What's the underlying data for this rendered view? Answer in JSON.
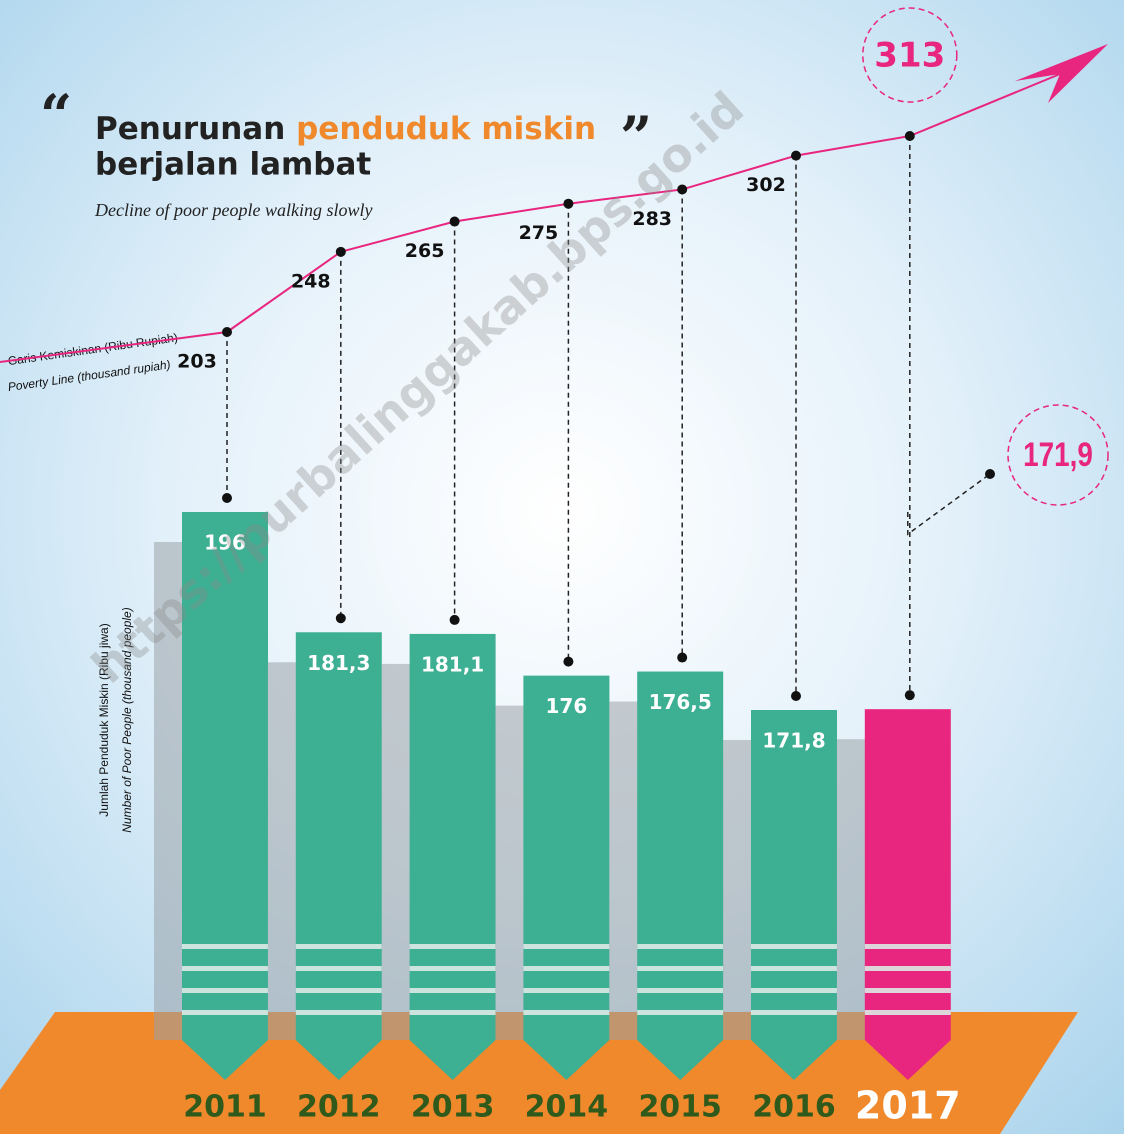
{
  "chart_data": {
    "type": "bar",
    "title": [
      "Penurunan",
      "penduduk miskin",
      "berjalan lambat"
    ],
    "subtitle": "Decline of poor people walking slowly",
    "watermark": "https://purbalinggakab.bps.go.id",
    "y_label": [
      "Jumlah Penduduk Miskin (Ribu jiwa)",
      "Number of Poor People (thousand people)"
    ],
    "line_label": [
      "Garis Kemiskinan (Ribu Rupiah)",
      "Poverty Line (thousand rupiah)"
    ],
    "categories": [
      "2011",
      "2012",
      "2013",
      "2014",
      "2015",
      "2016",
      "2017"
    ],
    "series": [
      {
        "type": "bar",
        "colors": [
          "#3daf93",
          "#3daf93",
          "#3daf93",
          "#3daf93",
          "#3daf93",
          "#3daf93",
          "#e8267f"
        ],
        "values": [
          196,
          181.3,
          181.1,
          176,
          176.5,
          171.8,
          171.9
        ],
        "value_labels": [
          "196",
          "181,3",
          "181,1",
          "176",
          "176,5",
          "171,8",
          "171,9"
        ]
      },
      {
        "type": "line",
        "color": "#e8267f",
        "values": [
          203,
          248,
          265,
          275,
          283,
          302,
          313
        ]
      }
    ]
  }
}
